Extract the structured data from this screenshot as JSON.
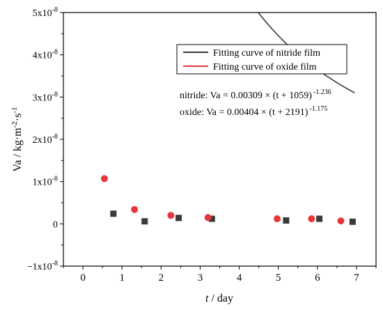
{
  "chart_data": {
    "type": "line",
    "xlabel_var": "t",
    "xlabel_unit": " / day",
    "ylabel": "Va / kg·m",
    "ylabel_sup1": "-2",
    "ylabel_mid": "·s",
    "ylabel_sup2": "-1",
    "xlim": [
      -0.5,
      7.5
    ],
    "ylim": [
      -1e-08,
      5e-08
    ],
    "x_ticks": [
      0,
      1,
      2,
      3,
      4,
      5,
      6,
      7
    ],
    "x_tick_labels": [
      "0",
      "1",
      "2",
      "3",
      "4",
      "5",
      "6",
      "7"
    ],
    "y_ticks": [
      -1e-08,
      0,
      1e-08,
      2e-08,
      3e-08,
      4e-08,
      5e-08
    ],
    "y_tick_labels": [
      {
        "base": "−1x10",
        "exp": "-8"
      },
      {
        "base": "0",
        "exp": ""
      },
      {
        "base": "1x10",
        "exp": "-8"
      },
      {
        "base": "2x10",
        "exp": "-8"
      },
      {
        "base": "3x10",
        "exp": "-8"
      },
      {
        "base": "4x10",
        "exp": "-8"
      },
      {
        "base": "5x10",
        "exp": "-8"
      }
    ],
    "legend_position": "top-right",
    "series": [
      {
        "name": "Fitting curve of nitride film",
        "color": "#3a3a3a",
        "marker": "square",
        "points": [
          {
            "x": 0.78,
            "y": 2.4e-09
          },
          {
            "x": 1.58,
            "y": 6e-10
          },
          {
            "x": 2.45,
            "y": 1.4e-09
          },
          {
            "x": 3.3,
            "y": 1.2e-09
          },
          {
            "x": 5.2,
            "y": 8e-10
          },
          {
            "x": 6.05,
            "y": 1.2e-09
          },
          {
            "x": 6.9,
            "y": 5e-10
          }
        ],
        "fit": {
          "a": 0.00309,
          "c": 1059,
          "b": -1.236
        }
      },
      {
        "name": "Fitting curve of oxide film",
        "color": "#e8373c",
        "marker": "circle",
        "points": [
          {
            "x": 0.55,
            "y": 1.07e-08
          },
          {
            "x": 1.32,
            "y": 3.4e-09
          },
          {
            "x": 2.25,
            "y": 2e-09
          },
          {
            "x": 3.2,
            "y": 1.5e-09
          },
          {
            "x": 4.97,
            "y": 1.2e-09
          },
          {
            "x": 5.85,
            "y": 1.2e-09
          },
          {
            "x": 6.6,
            "y": 7e-10
          }
        ],
        "fit": {
          "a": 0.00404,
          "c": 2191,
          "b": -1.175
        }
      }
    ],
    "annotations": [
      {
        "base": "nitride: Va = 0.00309 × (t + 1059)",
        "exp": "-1.236"
      },
      {
        "base": "oxide:  Va = 0.00404 × (t + 2191)",
        "exp": "-1.175"
      }
    ]
  }
}
